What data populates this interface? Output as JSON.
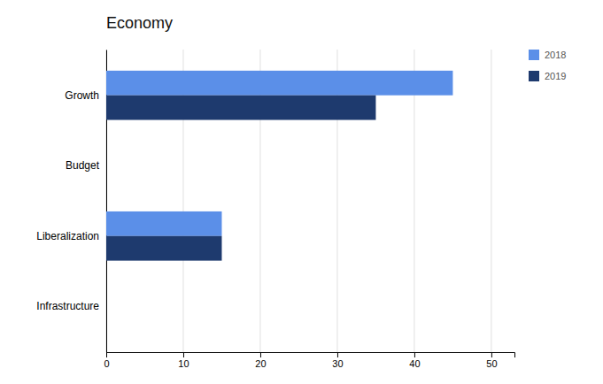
{
  "chart_data": {
    "type": "bar",
    "orientation": "horizontal",
    "title": "Economy",
    "categories": [
      "Infrastructure",
      "Liberalization",
      "Budget",
      "Growth"
    ],
    "series": [
      {
        "name": "2018",
        "color": "#5B8FE8",
        "values": [
          0,
          15,
          0,
          45
        ]
      },
      {
        "name": "2019",
        "color": "#1E3A6E",
        "values": [
          0,
          15,
          0,
          35
        ]
      }
    ],
    "xlim": [
      0,
      53
    ],
    "xticks": [
      0,
      10,
      20,
      30,
      40,
      50
    ],
    "grid": true,
    "legend": "upper right"
  }
}
